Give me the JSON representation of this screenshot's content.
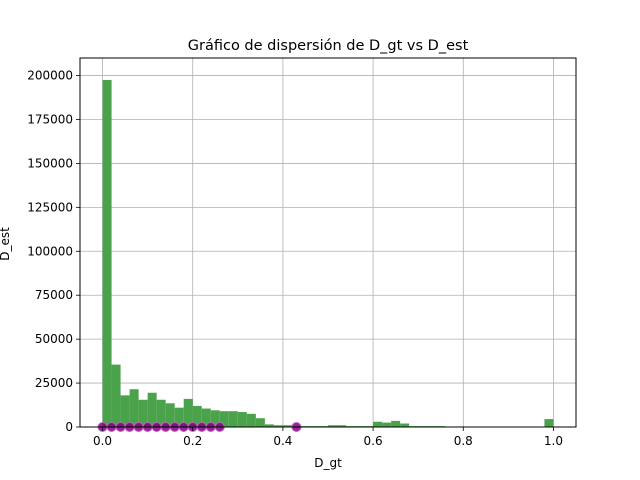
{
  "chart_data": {
    "type": "bar",
    "title": "Gráfico de dispersión de D_gt vs D_est",
    "xlabel": "D_gt",
    "ylabel": "D_est",
    "xlim": [
      -0.05,
      1.05
    ],
    "ylim": [
      0,
      210000
    ],
    "xticks": [
      0.0,
      0.2,
      0.4,
      0.6,
      0.8,
      1.0
    ],
    "xtick_labels": [
      "0.0",
      "0.2",
      "0.4",
      "0.6",
      "0.8",
      "1.0"
    ],
    "yticks": [
      0,
      25000,
      50000,
      75000,
      100000,
      125000,
      150000,
      175000,
      200000
    ],
    "ytick_labels": [
      "0",
      "25000",
      "50000",
      "75000",
      "100000",
      "125000",
      "150000",
      "175000",
      "200000"
    ],
    "grid": true,
    "colors": {
      "histogram": "#4aa24a",
      "scatter": "#800080",
      "scatter_edge": "#c060c0"
    },
    "histogram": {
      "bin_width": 0.02,
      "bin_starts": [
        0.0,
        0.02,
        0.04,
        0.06,
        0.08,
        0.1,
        0.12,
        0.14,
        0.16,
        0.18,
        0.2,
        0.22,
        0.24,
        0.26,
        0.28,
        0.3,
        0.32,
        0.34,
        0.36,
        0.38,
        0.4,
        0.42,
        0.44,
        0.46,
        0.48,
        0.5,
        0.52,
        0.54,
        0.56,
        0.58,
        0.6,
        0.62,
        0.64,
        0.66,
        0.68,
        0.7,
        0.72,
        0.74,
        0.76,
        0.78,
        0.8,
        0.82,
        0.84,
        0.86,
        0.88,
        0.9,
        0.92,
        0.94,
        0.96,
        0.98
      ],
      "values": [
        197500,
        35500,
        18000,
        21500,
        15500,
        19500,
        15500,
        13500,
        11000,
        16000,
        12000,
        10500,
        9500,
        9000,
        9000,
        8500,
        7500,
        5000,
        1500,
        1000,
        1000,
        500,
        500,
        500,
        500,
        1000,
        1000,
        500,
        500,
        500,
        3000,
        2500,
        3500,
        2000,
        500,
        500,
        500,
        500,
        0,
        0,
        0,
        0,
        0,
        0,
        0,
        0,
        0,
        0,
        0,
        4500
      ]
    },
    "scatter": {
      "x": [
        0.0,
        0.02,
        0.04,
        0.06,
        0.08,
        0.1,
        0.12,
        0.14,
        0.16,
        0.18,
        0.2,
        0.22,
        0.24,
        0.26,
        0.43
      ],
      "y": [
        0,
        0,
        0,
        0,
        0,
        0,
        0,
        0,
        0,
        0,
        0,
        0,
        0,
        0,
        0
      ]
    }
  }
}
